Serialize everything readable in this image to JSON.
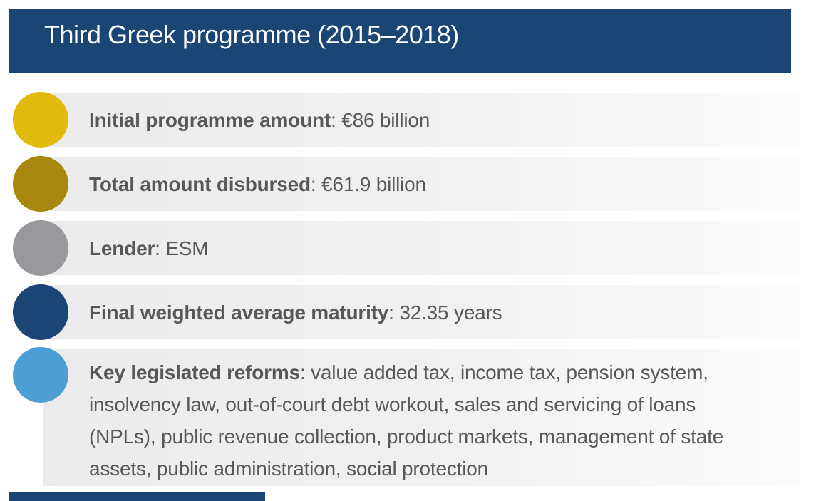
{
  "header": {
    "title": "Third Greek programme (2015–2018)",
    "background_color": "#1a4574",
    "text_color": "#ffffff"
  },
  "separator": ": ",
  "text_color": "#58585a",
  "band_gradient": [
    "#ebebeb",
    "#fcfcfc"
  ],
  "rows": [
    {
      "label": "Initial programme amount",
      "value": "€86 billion",
      "bullet_color": "#e2ba0c"
    },
    {
      "label": "Total amount disbursed",
      "value": "€61.9 billion",
      "bullet_color": "#a8870e"
    },
    {
      "label": "Lender",
      "value": "ESM",
      "bullet_color": "#97999c"
    },
    {
      "label": "Final weighted average maturity",
      "value": "32.35 years",
      "bullet_color": "#1a4574"
    },
    {
      "label": "Key legislated reforms",
      "value": "value added tax, income tax, pension system,\ninsolvency law, out-of-court debt workout, sales and servicing of loans\n(NPLs), public revenue collection, product markets, management of state\nassets, public administration, social protection",
      "bullet_color": "#4d9ed3"
    }
  ],
  "footer": {
    "bar_color": "#1a4574"
  }
}
